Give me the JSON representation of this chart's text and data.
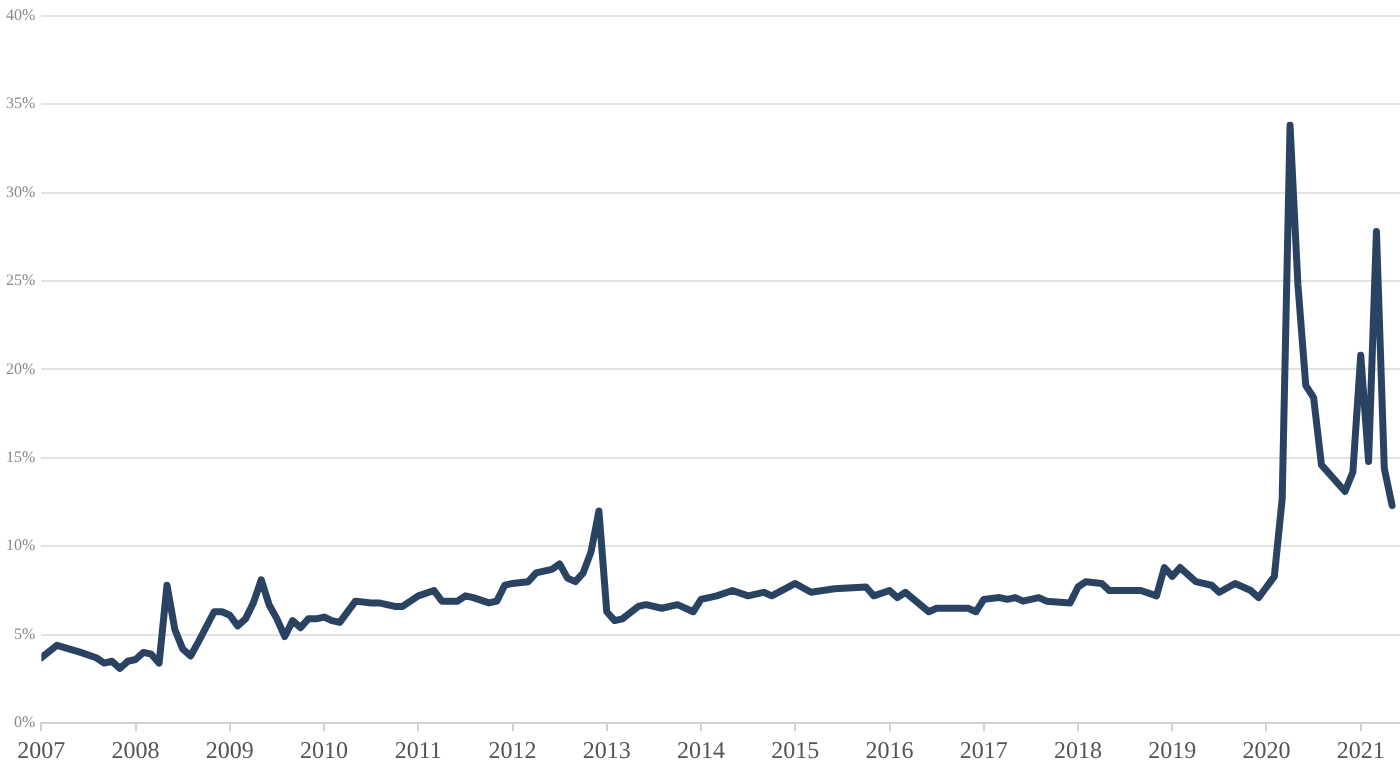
{
  "chart_data": {
    "type": "line",
    "x": [
      "2007-01",
      "2007-03",
      "2007-06",
      "2007-08",
      "2007-09",
      "2007-10",
      "2007-11",
      "2007-12",
      "2008-01",
      "2008-02",
      "2008-03",
      "2008-04",
      "2008-05",
      "2008-06",
      "2008-07",
      "2008-08",
      "2008-09",
      "2008-11",
      "2008-12",
      "2009-01",
      "2009-02",
      "2009-03",
      "2009-04",
      "2009-05",
      "2009-06",
      "2009-07",
      "2009-08",
      "2009-09",
      "2009-10",
      "2009-11",
      "2009-12",
      "2010-01",
      "2010-02",
      "2010-03",
      "2010-05",
      "2010-07",
      "2010-08",
      "2010-10",
      "2010-11",
      "2011-01",
      "2011-03",
      "2011-04",
      "2011-06",
      "2011-07",
      "2011-08",
      "2011-10",
      "2011-11",
      "2011-12",
      "2012-01",
      "2012-03",
      "2012-04",
      "2012-06",
      "2012-07",
      "2012-08",
      "2012-09",
      "2012-10",
      "2012-11",
      "2012-12",
      "2013-01",
      "2013-02",
      "2013-03",
      "2013-05",
      "2013-06",
      "2013-08",
      "2013-10",
      "2013-12",
      "2014-01",
      "2014-03",
      "2014-05",
      "2014-07",
      "2014-09",
      "2014-10",
      "2015-01",
      "2015-03",
      "2015-06",
      "2015-10",
      "2015-11",
      "2016-01",
      "2016-02",
      "2016-03",
      "2016-06",
      "2016-07",
      "2016-11",
      "2016-12",
      "2017-01",
      "2017-03",
      "2017-04",
      "2017-05",
      "2017-06",
      "2017-08",
      "2017-09",
      "2017-12",
      "2018-01",
      "2018-02",
      "2018-04",
      "2018-05",
      "2018-09",
      "2018-11",
      "2018-12",
      "2019-01",
      "2019-02",
      "2019-04",
      "2019-06",
      "2019-07",
      "2019-09",
      "2019-11",
      "2019-12",
      "2020-01",
      "2020-02",
      "2020-03",
      "2020-04",
      "2020-05",
      "2020-06",
      "2020-07",
      "2020-08",
      "2020-11",
      "2020-12",
      "2021-01",
      "2021-02",
      "2021-03",
      "2021-04",
      "2021-05"
    ],
    "series": [
      {
        "color": "#2a4363",
        "values": [
          3.7,
          4.4,
          4.0,
          3.7,
          3.4,
          3.5,
          3.1,
          3.5,
          3.6,
          4.0,
          3.9,
          3.4,
          7.8,
          5.3,
          4.2,
          3.8,
          4.6,
          6.3,
          6.3,
          6.1,
          5.5,
          5.9,
          6.8,
          8.1,
          6.7,
          5.9,
          4.9,
          5.8,
          5.4,
          5.9,
          5.9,
          6.0,
          5.8,
          5.7,
          6.9,
          6.8,
          6.8,
          6.6,
          6.6,
          7.2,
          7.5,
          6.9,
          6.9,
          7.2,
          7.1,
          6.8,
          6.9,
          7.8,
          7.9,
          8.0,
          8.5,
          8.7,
          9.0,
          8.2,
          8.0,
          8.5,
          9.7,
          12.0,
          6.3,
          5.8,
          5.9,
          6.6,
          6.7,
          6.5,
          6.7,
          6.3,
          7.0,
          7.2,
          7.5,
          7.2,
          7.4,
          7.2,
          7.9,
          7.4,
          7.6,
          7.7,
          7.2,
          7.5,
          7.1,
          7.4,
          6.3,
          6.5,
          6.5,
          6.3,
          7.0,
          7.1,
          7.0,
          7.1,
          6.9,
          7.1,
          6.9,
          6.8,
          7.7,
          8.0,
          7.9,
          7.5,
          7.5,
          7.2,
          8.8,
          8.3,
          8.8,
          8.0,
          7.8,
          7.4,
          7.9,
          7.5,
          7.1,
          7.7,
          8.3,
          12.7,
          33.8,
          24.8,
          19.1,
          18.4,
          14.6,
          13.1,
          14.2,
          20.8,
          14.8,
          27.8,
          14.4,
          12.3
        ]
      }
    ],
    "xlim": [
      "2007-01",
      "2021-06"
    ],
    "xticks": [
      "2007",
      "2008",
      "2009",
      "2010",
      "2011",
      "2012",
      "2013",
      "2014",
      "2015",
      "2016",
      "2017",
      "2018",
      "2019",
      "2020",
      "2021"
    ],
    "ylim": [
      0,
      40
    ],
    "yticks": [
      {
        "value": 0,
        "label": "0%"
      },
      {
        "value": 5,
        "label": "5%"
      },
      {
        "value": 10,
        "label": "10%"
      },
      {
        "value": 15,
        "label": "15%"
      },
      {
        "value": 20,
        "label": "20%"
      },
      {
        "value": 25,
        "label": "25%"
      },
      {
        "value": 30,
        "label": "30%"
      },
      {
        "value": 35,
        "label": "35%"
      },
      {
        "value": 40,
        "label": "40%"
      }
    ],
    "grid": "y",
    "legend": false,
    "marker": "none",
    "line_style": "solid"
  }
}
